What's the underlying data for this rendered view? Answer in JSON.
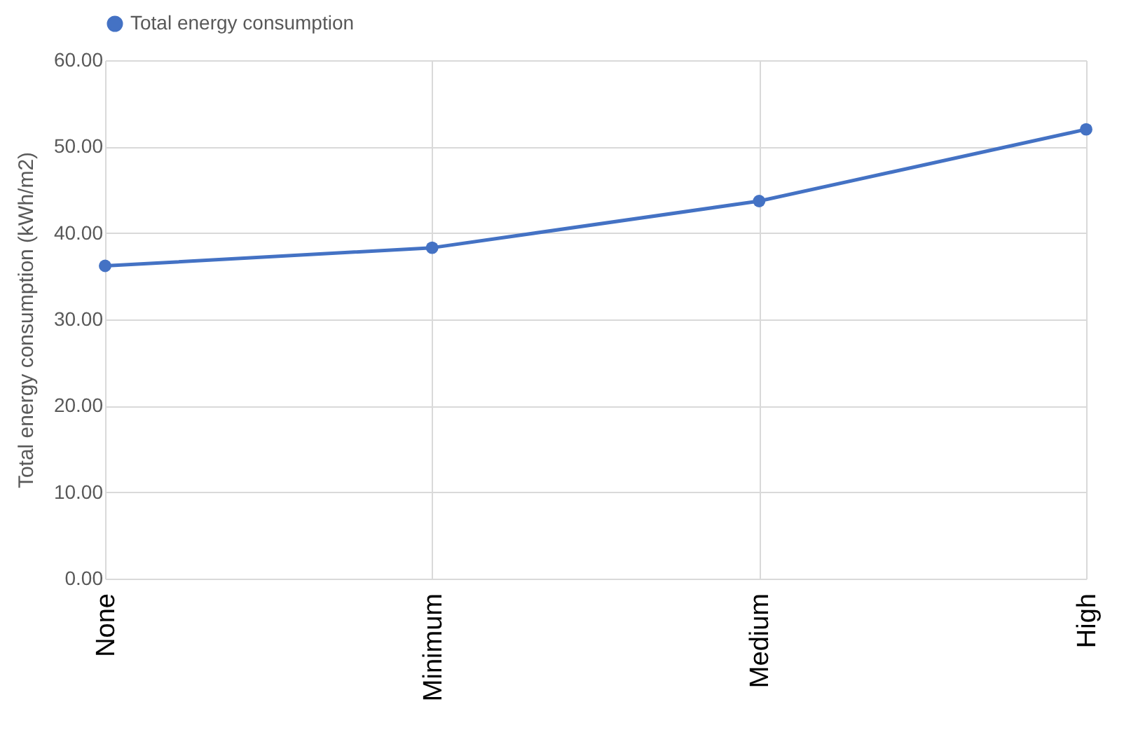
{
  "chart_data": {
    "type": "line",
    "ylabel": "Total energy consumption (kWh/m2)",
    "categories": [
      "None",
      "Minimum",
      "Medium",
      "High"
    ],
    "series": [
      {
        "name": "Total energy consumption",
        "color": "#4472c4",
        "values": [
          36.2,
          38.3,
          43.7,
          52.0
        ]
      }
    ],
    "ylim": [
      0,
      60
    ],
    "yticks": [
      {
        "value": 0,
        "label": "0.00"
      },
      {
        "value": 10,
        "label": "10.00"
      },
      {
        "value": 20,
        "label": "20.00"
      },
      {
        "value": 30,
        "label": "30.00"
      },
      {
        "value": 40,
        "label": "40.00"
      },
      {
        "value": 50,
        "label": "50.00"
      },
      {
        "value": 60,
        "label": "60.00"
      }
    ],
    "grid": true,
    "legend": "top",
    "marker": "circle",
    "line_style": "solid"
  }
}
